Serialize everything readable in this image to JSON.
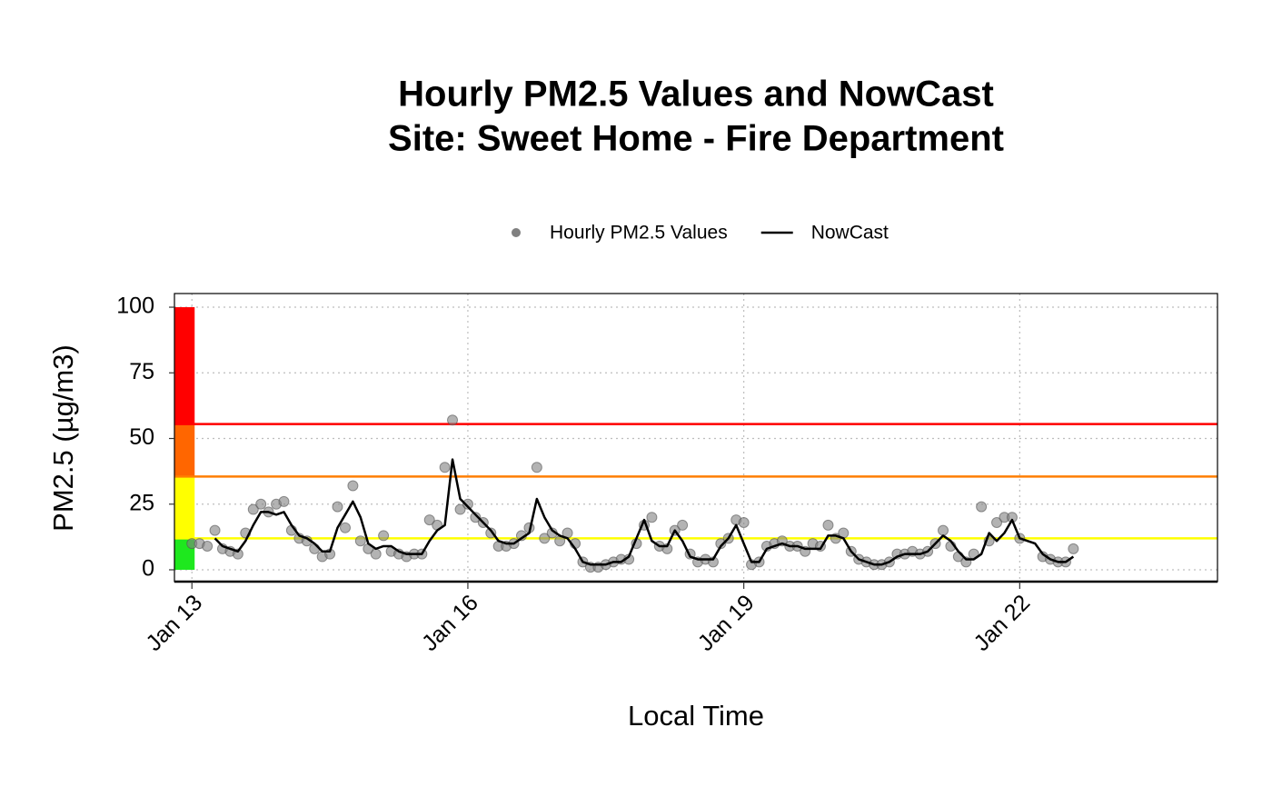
{
  "chart_data": {
    "type": "line",
    "title": "Hourly PM2.5 Values and NowCast",
    "subtitle": "Site: Sweet Home - Fire Department",
    "x_label": "Local Time",
    "y_label": "PM2.5 (µg/m3)",
    "x": [
      13,
      13.083,
      13.167,
      13.25,
      13.333,
      13.417,
      13.5,
      13.583,
      13.667,
      13.75,
      13.833,
      13.917,
      14,
      14.083,
      14.167,
      14.25,
      14.333,
      14.417,
      14.5,
      14.583,
      14.667,
      14.75,
      14.833,
      14.917,
      15,
      15.083,
      15.167,
      15.25,
      15.333,
      15.417,
      15.5,
      15.583,
      15.667,
      15.75,
      15.833,
      15.917,
      16,
      16.083,
      16.167,
      16.25,
      16.333,
      16.417,
      16.5,
      16.583,
      16.667,
      16.75,
      16.833,
      16.917,
      17,
      17.083,
      17.167,
      17.25,
      17.333,
      17.417,
      17.5,
      17.583,
      17.667,
      17.75,
      17.833,
      17.917,
      18,
      18.083,
      18.167,
      18.25,
      18.333,
      18.417,
      18.5,
      18.583,
      18.667,
      18.75,
      18.833,
      18.917,
      19,
      19.083,
      19.167,
      19.25,
      19.333,
      19.417,
      19.5,
      19.583,
      19.667,
      19.75,
      19.833,
      19.917,
      20,
      20.083,
      20.167,
      20.25,
      20.333,
      20.417,
      20.5,
      20.583,
      20.667,
      20.75,
      20.833,
      20.917,
      21,
      21.083,
      21.167,
      21.25,
      21.333,
      21.417,
      21.5,
      21.583,
      21.667,
      21.75,
      21.833,
      21.917,
      22,
      22.083,
      22.167,
      22.25,
      22.333,
      22.417,
      22.5,
      22.583
    ],
    "series": [
      {
        "name": "Hourly PM2.5 Values",
        "style": "points",
        "color": "#808080",
        "values": [
          10,
          10,
          9,
          15,
          8,
          7,
          6,
          14,
          23,
          25,
          22,
          25,
          26,
          15,
          12,
          11,
          8,
          5,
          6,
          24,
          16,
          32,
          11,
          8,
          6,
          13,
          7,
          6,
          5,
          6,
          6,
          19,
          17,
          39,
          57,
          23,
          25,
          20,
          18,
          14,
          9,
          9,
          10,
          13,
          16,
          39,
          12,
          14,
          11,
          14,
          10,
          3,
          1,
          1,
          2,
          3,
          4,
          4,
          10,
          17,
          20,
          9,
          8,
          15,
          17,
          6,
          3,
          4,
          3,
          10,
          12,
          19,
          18,
          2,
          3,
          9,
          10,
          11,
          9,
          9,
          7,
          10,
          9,
          17,
          12,
          14,
          7,
          4,
          3,
          2,
          2,
          3,
          6,
          6,
          7,
          6,
          7,
          10,
          15,
          9,
          5,
          3,
          6,
          24,
          11,
          18,
          20,
          20,
          12,
          null,
          null,
          5,
          4,
          3,
          3,
          8
        ]
      },
      {
        "name": "NowCast",
        "style": "line",
        "color": "#000000",
        "values": [
          null,
          null,
          null,
          12,
          9,
          8,
          7,
          11,
          17,
          22,
          22,
          21,
          22,
          17,
          13,
          12,
          10,
          7,
          7,
          16,
          21,
          26,
          20,
          10,
          8,
          9,
          9,
          7,
          6,
          6,
          6,
          11,
          15,
          17,
          42,
          27,
          24,
          21,
          18,
          15,
          11,
          10,
          10,
          12,
          14,
          27,
          20,
          15,
          13,
          12,
          8,
          3,
          2,
          2,
          2,
          3,
          3,
          5,
          12,
          19,
          11,
          9,
          9,
          15,
          11,
          5,
          4,
          4,
          4,
          9,
          12,
          17,
          10,
          3,
          3,
          8,
          9,
          10,
          9,
          9,
          8,
          8,
          8,
          13,
          13,
          12,
          7,
          4,
          3,
          2,
          2,
          3,
          5,
          6,
          6,
          6,
          7,
          10,
          13,
          11,
          7,
          4,
          4,
          6,
          14,
          11,
          14,
          19,
          12,
          11,
          10,
          6,
          4,
          3,
          3,
          5
        ]
      }
    ],
    "xlim": [
      12.81,
      24.15
    ],
    "ylim": [
      -4.5,
      105.2
    ],
    "xticks": [
      {
        "value": 13,
        "label": "Jan 13"
      },
      {
        "value": 16,
        "label": "Jan 16"
      },
      {
        "value": 19,
        "label": "Jan 19"
      },
      {
        "value": 22,
        "label": "Jan 22"
      }
    ],
    "yticks": [
      0,
      25,
      50,
      75,
      100
    ],
    "grid": true,
    "legend": "top",
    "aqi_breaks": [
      0,
      12,
      35.5,
      55.5,
      100
    ],
    "aqi_colors": [
      "#1ee81e",
      "#ffff00",
      "#ff6600",
      "#ff0000"
    ],
    "thresholds": [
      {
        "value": 12,
        "color": "#ffff00"
      },
      {
        "value": 35.5,
        "color": "#ff7e00"
      },
      {
        "value": 55.5,
        "color": "#ff0000"
      }
    ]
  }
}
